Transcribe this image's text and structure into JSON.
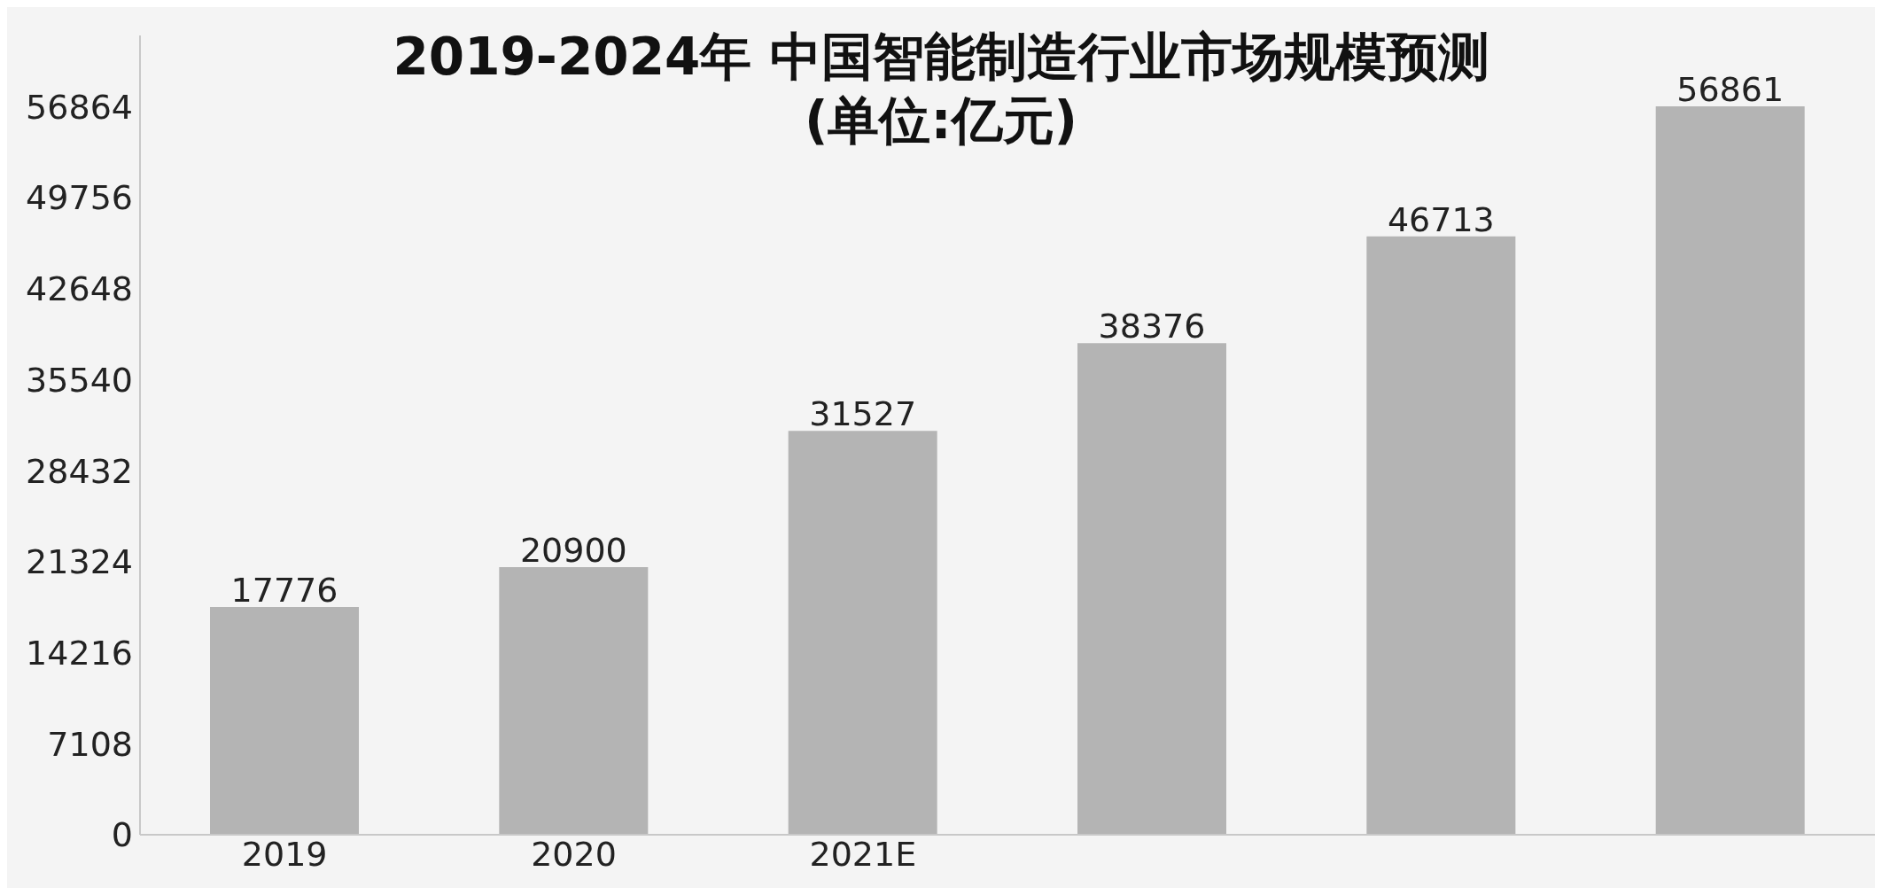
{
  "chart_data": {
    "type": "bar",
    "title": "2019-2024年 中国智能制造行业市场规模预测",
    "subtitle": "(单位:亿元)",
    "categories": [
      "2019",
      "2020",
      "2021E",
      null,
      null,
      null
    ],
    "values": [
      17776,
      20900,
      31527,
      38376,
      46713,
      56861
    ],
    "color": "#b4b4b4",
    "ylim": [
      0,
      62400
    ],
    "yticks": [
      0,
      7108,
      14216,
      21324,
      28432,
      35540,
      42648,
      49756,
      56864
    ],
    "grid": false,
    "data_labels": true
  }
}
